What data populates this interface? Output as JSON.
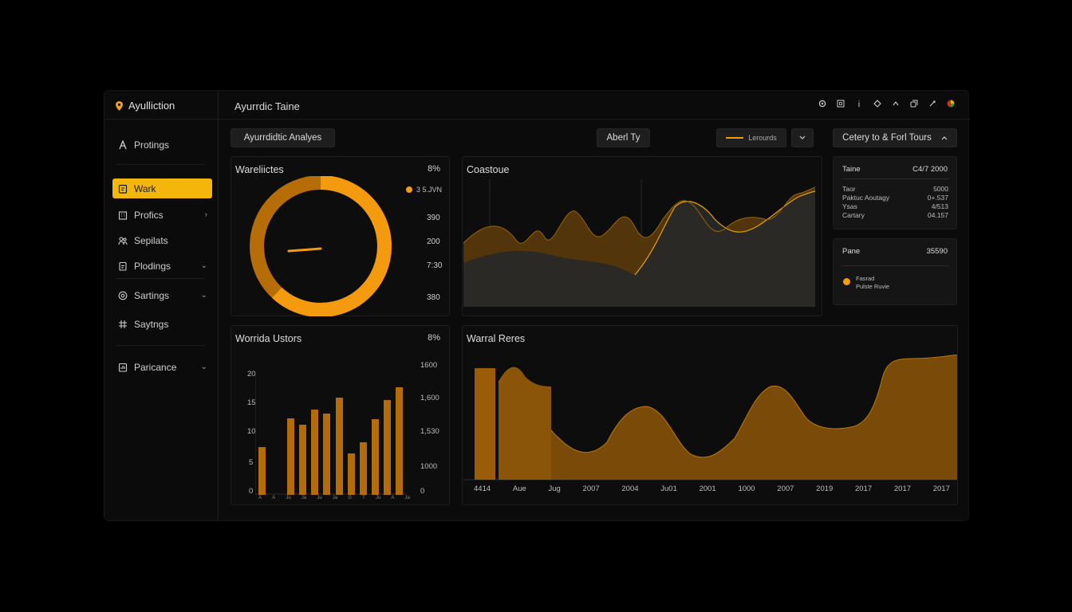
{
  "app": {
    "name": "Ayulliction",
    "page_title": "Ayurrdic Taine"
  },
  "sidebar": {
    "items": [
      {
        "label": "Protings",
        "icon": "letter-a-icon"
      },
      {
        "label": "Wark",
        "icon": "clipboard-icon",
        "active": true
      },
      {
        "label": "Profics",
        "icon": "building-icon",
        "chevron": "›"
      },
      {
        "label": "Sepilats",
        "icon": "people-icon"
      },
      {
        "label": "Plodings",
        "icon": "document-icon",
        "chevron": "⌄"
      },
      {
        "label": "Sartings",
        "icon": "gear-icon",
        "chevron": "⌄"
      },
      {
        "label": "Saytngs",
        "icon": "grid-icon"
      },
      {
        "label": "Paricance",
        "icon": "report-icon",
        "chevron": "⌄"
      }
    ]
  },
  "toolbar": {
    "analysis_label": "Ayurrdidtic Analyes",
    "center_label": "Aberl Ty",
    "legend_label": "Lerourds",
    "right_label": "Cetery to & Forl Tours"
  },
  "donut_panel": {
    "title": "Wareliictes",
    "pct": "8%",
    "legend": "3 5.JVN",
    "values": [
      "390",
      "200",
      "7:30",
      "380"
    ],
    "fill_fraction": 0.62,
    "accent": "#f39a0e"
  },
  "line_panel": {
    "title": "Coastoue"
  },
  "bar_panel": {
    "title": "Worrida Ustors",
    "pct": "8%",
    "left_ticks": [
      "20",
      "15",
      "10",
      "5",
      "0"
    ],
    "right_ticks": [
      "1600",
      "1,600",
      "1,530",
      "1000",
      "0"
    ],
    "x_labels": [
      "A",
      "A",
      "Ju",
      "Ja",
      "Ju",
      "Ja",
      "G",
      "T",
      "Ju",
      "A",
      "Ja"
    ]
  },
  "area_panel": {
    "title": "Warral Reres",
    "x_labels": [
      "4414",
      "Aue",
      "Jug",
      "2007",
      "2004",
      "Ju01",
      "2001",
      "1000",
      "2007",
      "2019",
      "2017",
      "2017",
      "2017"
    ]
  },
  "stats_card": {
    "header_label": "Taine",
    "header_value": "C4/7 2000",
    "rows": [
      {
        "label": "Taor",
        "value": "5000"
      },
      {
        "label": "Paktuc Aoutagy",
        "value": "0+.537"
      },
      {
        "label": "Ysas",
        "value": "4/513"
      },
      {
        "label": "Cartary",
        "value": "04.157"
      }
    ]
  },
  "pane_card": {
    "label": "Pane",
    "value": "35590",
    "legend_line1": "Fasrad",
    "legend_line2": "Pulste Ruvie"
  },
  "colors": {
    "accent": "#f5b60c",
    "orange": "#f39a0e",
    "bronze": "#7a4a09"
  }
}
